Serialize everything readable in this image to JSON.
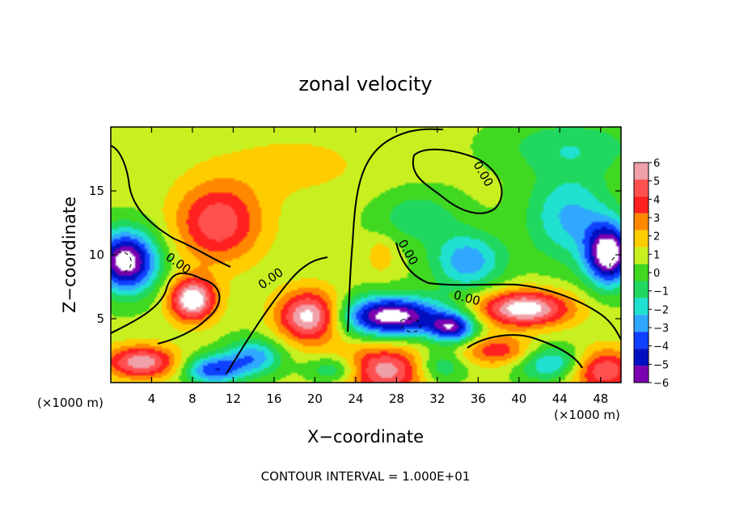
{
  "chart_data": {
    "type": "heatmap",
    "title": "zonal velocity",
    "xlabel": "X−coordinate",
    "ylabel": "Z−coordinate",
    "x_unit_left": "(×1000 m)",
    "x_unit_right": "(×1000 m)",
    "footer": "CONTOUR INTERVAL = 1.000E+01",
    "xlim": [
      0,
      50
    ],
    "ylim": [
      0,
      20
    ],
    "x_ticks": [
      4,
      8,
      12,
      16,
      20,
      24,
      28,
      32,
      36,
      40,
      44,
      48
    ],
    "y_ticks": [
      5,
      10,
      15
    ],
    "contour_labels": [
      "0.00",
      "0.00",
      "0.00",
      "0.00",
      "0.00"
    ],
    "colorbar": {
      "ticks": [
        "6",
        "5",
        "4",
        "3",
        "2",
        "1",
        "0",
        "−1",
        "−2",
        "−3",
        "−4",
        "−5",
        "−6"
      ],
      "colors": [
        "#f0a0a8",
        "#ff5050",
        "#ff2020",
        "#ff8800",
        "#ffcc00",
        "#c8f020",
        "#40d820",
        "#20d860",
        "#20e0d0",
        "#30a8ff",
        "#1040ff",
        "#0010c0",
        "#7a00b0"
      ]
    },
    "blobs": [
      {
        "x": 10.5,
        "z": 12.5,
        "u": 4.5,
        "sx": 3.0,
        "sz": 2.2
      },
      {
        "x": 8.0,
        "z": 6.5,
        "u": 6.8,
        "sx": 1.6,
        "sz": 1.2
      },
      {
        "x": 19.5,
        "z": 5.2,
        "u": 6.5,
        "sx": 2.2,
        "sz": 1.4
      },
      {
        "x": 40.5,
        "z": 5.8,
        "u": 6.5,
        "sx": 3.2,
        "sz": 1.0
      },
      {
        "x": 3.0,
        "z": 1.6,
        "u": 5.5,
        "sx": 2.5,
        "sz": 0.9
      },
      {
        "x": 27.0,
        "z": 1.0,
        "u": 5.5,
        "sx": 4.0,
        "sz": 1.3
      },
      {
        "x": 48.0,
        "z": 1.0,
        "u": 5.0,
        "sx": 2.5,
        "sz": 1.2
      },
      {
        "x": 38.0,
        "z": 2.5,
        "u": 3.5,
        "sx": 2.5,
        "sz": 0.8
      },
      {
        "x": 26.5,
        "z": 10.0,
        "u": 1.5,
        "sx": 1.0,
        "sz": 1.0
      },
      {
        "x": 27.5,
        "z": 5.2,
        "u": -8.0,
        "sx": 3.6,
        "sz": 1.1
      },
      {
        "x": 33.5,
        "z": 4.3,
        "u": -6.0,
        "sx": 1.6,
        "sz": 0.8
      },
      {
        "x": 1.5,
        "z": 9.5,
        "u": -8.0,
        "sx": 2.2,
        "sz": 1.7
      },
      {
        "x": 48.8,
        "z": 10.0,
        "u": -8.0,
        "sx": 1.6,
        "sz": 1.7
      },
      {
        "x": 45.0,
        "z": 13.0,
        "u": -3.5,
        "sx": 3.0,
        "sz": 2.5
      },
      {
        "x": 35.0,
        "z": 9.5,
        "u": -4.0,
        "sx": 2.5,
        "sz": 1.6
      },
      {
        "x": 14.0,
        "z": 2.0,
        "u": -4.0,
        "sx": 2.0,
        "sz": 1.0
      },
      {
        "x": 32.0,
        "z": 1.2,
        "u": -4.0,
        "sx": 2.0,
        "sz": 1.0
      },
      {
        "x": 43.5,
        "z": 1.5,
        "u": -4.0,
        "sx": 2.5,
        "sz": 1.0
      },
      {
        "x": 10.0,
        "z": 1.0,
        "u": -5.0,
        "sx": 2.0,
        "sz": 0.8
      },
      {
        "x": 22.0,
        "z": 1.0,
        "u": -4.0,
        "sx": 2.0,
        "sz": 0.8
      },
      {
        "x": 30.0,
        "z": 13.0,
        "u": -2.0,
        "sx": 3.0,
        "sz": 1.5
      },
      {
        "x": 45.0,
        "z": 18.5,
        "u": -2.0,
        "sx": 5.0,
        "sz": 1.5
      },
      {
        "x": 18.0,
        "z": 17.0,
        "u": 1.0,
        "sx": 6.0,
        "sz": 2.0
      }
    ]
  }
}
